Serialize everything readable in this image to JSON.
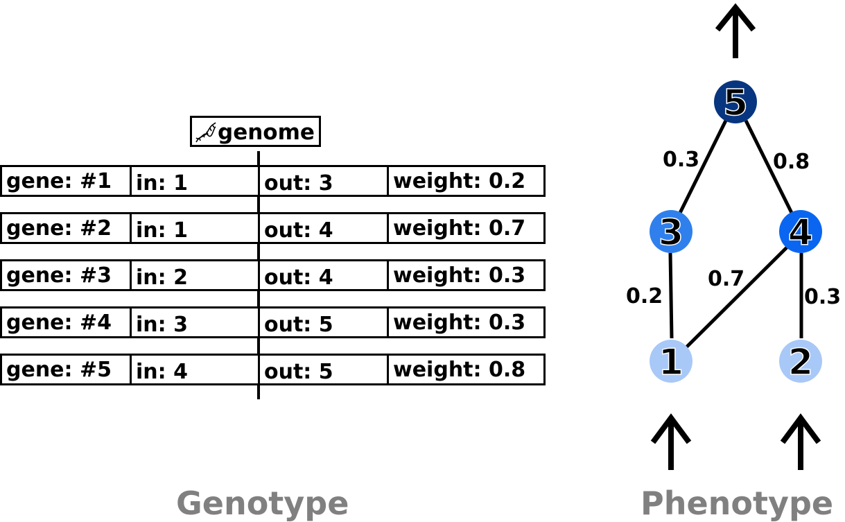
{
  "genome": {
    "label": "genome",
    "icon": "dna-icon",
    "genes": [
      {
        "gene": "gene: #1",
        "in": "in: 1",
        "out": "out: 3",
        "weight": "weight: 0.2"
      },
      {
        "gene": "gene: #2",
        "in": "in: 1",
        "out": "out: 4",
        "weight": "weight: 0.7"
      },
      {
        "gene": "gene: #3",
        "in": "in: 2",
        "out": "out: 4",
        "weight": "weight: 0.3"
      },
      {
        "gene": "gene: #4",
        "in": "in: 3",
        "out": "out: 5",
        "weight": "weight: 0.3"
      },
      {
        "gene": "gene: #5",
        "in": "in: 4",
        "out": "out: 5",
        "weight": "weight: 0.8"
      }
    ]
  },
  "network": {
    "nodes": [
      {
        "id": "1",
        "label": "1",
        "color": "#a8c8f8"
      },
      {
        "id": "2",
        "label": "2",
        "color": "#a8c8f8"
      },
      {
        "id": "3",
        "label": "3",
        "color": "#2f80ed"
      },
      {
        "id": "4",
        "label": "4",
        "color": "#0a66f0"
      },
      {
        "id": "5",
        "label": "5",
        "color": "#083580"
      }
    ],
    "edges": [
      {
        "from": "1",
        "to": "3",
        "weight": "0.2"
      },
      {
        "from": "1",
        "to": "4",
        "weight": "0.7"
      },
      {
        "from": "2",
        "to": "4",
        "weight": "0.3"
      },
      {
        "from": "3",
        "to": "5",
        "weight": "0.3"
      },
      {
        "from": "4",
        "to": "5",
        "weight": "0.8"
      }
    ],
    "input_arrows": "up-arrow-icon",
    "output_arrow": "up-arrow-icon"
  },
  "captions": {
    "genotype": "Genotype",
    "phenotype": "Phenotype"
  }
}
